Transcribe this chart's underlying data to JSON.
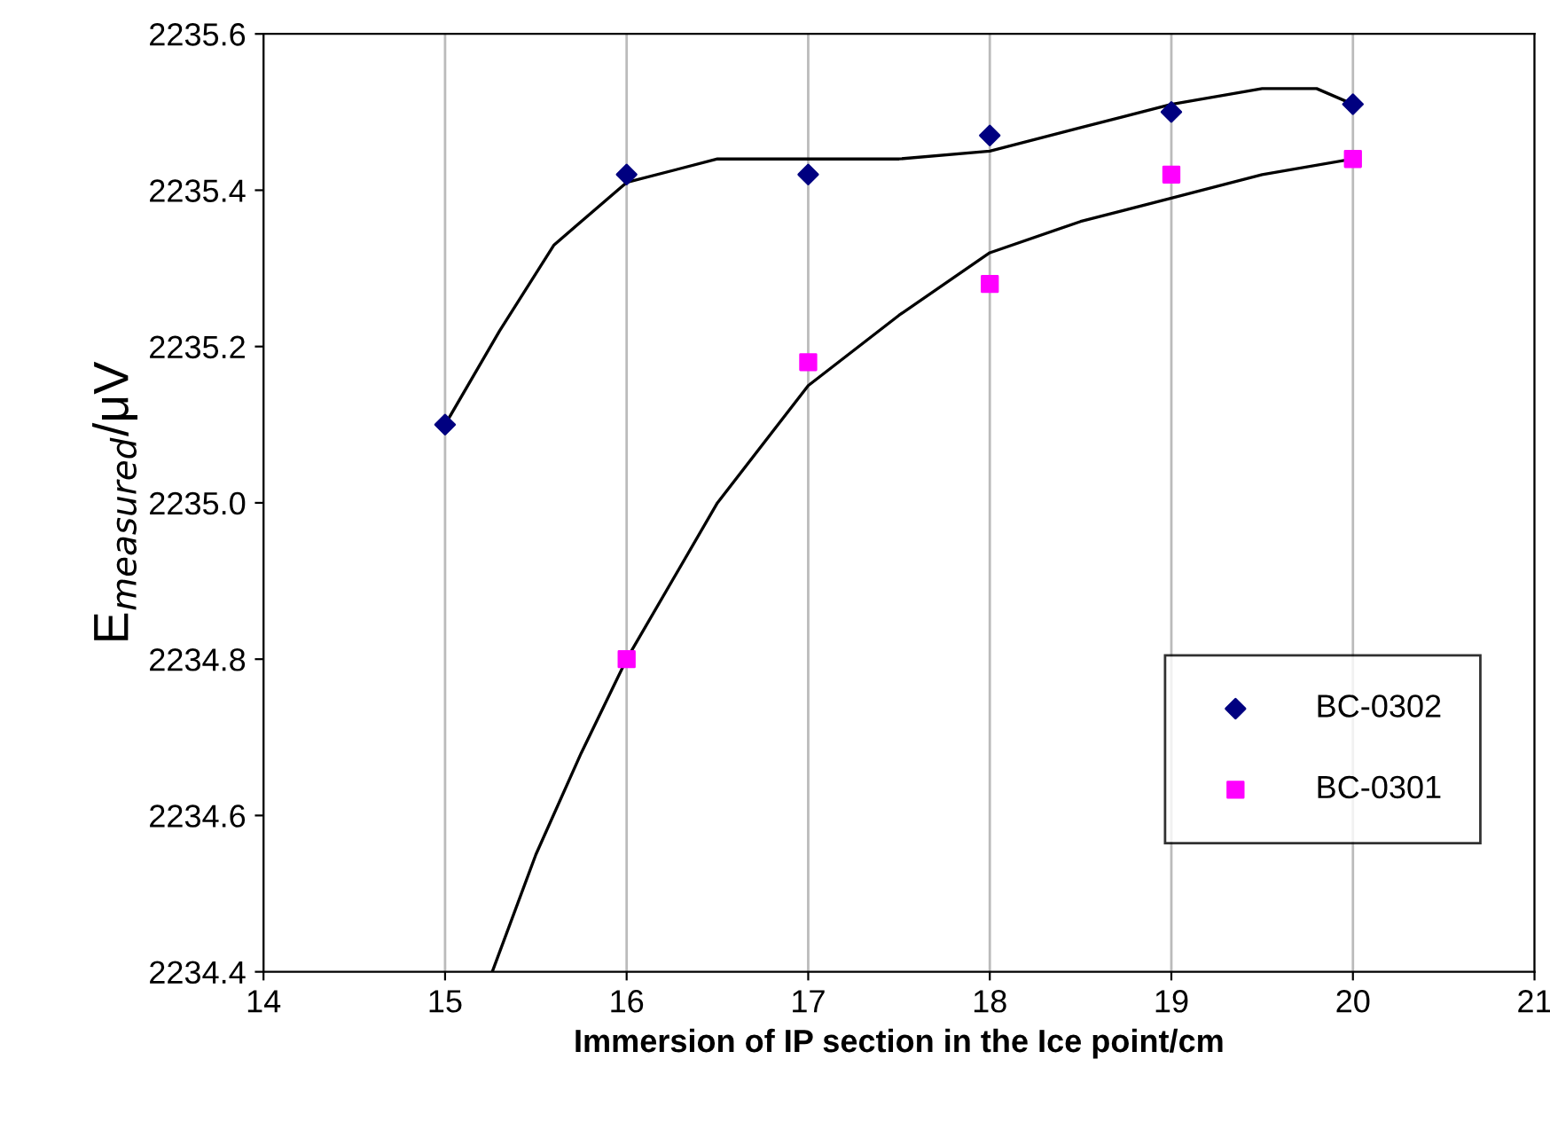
{
  "chart_data": {
    "type": "scatter",
    "xlabel": "Immersion of IP section in the Ice point/cm",
    "ylabel": "E$_{measured}$/μV",
    "xlim": [
      14,
      21
    ],
    "xticks": [
      14,
      15,
      16,
      17,
      18,
      19,
      20,
      21
    ],
    "ylim": [
      2234.4,
      2235.6
    ],
    "yticks": [
      {
        "value": 2234.4,
        "label": "2234.4"
      },
      {
        "value": 2234.6,
        "label": "2234.6"
      },
      {
        "value": 2234.8,
        "label": "2234.8"
      },
      {
        "value": 2235.0,
        "label": "2235.0"
      },
      {
        "value": 2235.2,
        "label": "2235.2"
      },
      {
        "value": 2235.4,
        "label": "2235.4"
      },
      {
        "value": 2235.6,
        "label": "2235.6"
      }
    ],
    "grid": "x",
    "legend": "bottom right",
    "series": [
      {
        "name": "BC-0302",
        "color": "#000080",
        "marker": "diamond",
        "x": [
          15,
          16,
          17,
          18,
          19,
          20
        ],
        "values": [
          2235.1,
          2235.42,
          2235.42,
          2235.47,
          2235.5,
          2235.51
        ]
      },
      {
        "name": "BC-0301",
        "color": "#ff00ff",
        "marker": "square",
        "x": [
          16,
          17,
          18,
          19,
          20
        ],
        "values": [
          2234.8,
          2235.18,
          2235.28,
          2235.42,
          2235.44
        ]
      },
      {
        "type": "line",
        "color": "#000000",
        "marker": "none",
        "x": [
          15,
          15.3,
          15.6,
          16,
          16.5,
          17,
          17.5,
          18,
          18.5,
          19,
          19.5,
          19.8,
          20
        ],
        "values": [
          2235.1,
          2235.22,
          2235.33,
          2235.41,
          2235.44,
          2235.44,
          2235.44,
          2235.45,
          2235.48,
          2235.51,
          2235.53,
          2235.53,
          2235.51
        ]
      },
      {
        "type": "line",
        "color": "#000000",
        "marker": "none",
        "x": [
          15.26,
          15.5,
          15.75,
          16,
          16.5,
          17,
          17.5,
          18,
          18.5,
          19,
          19.5,
          20
        ],
        "values": [
          2234.4,
          2234.55,
          2234.68,
          2234.8,
          2235.0,
          2235.15,
          2235.24,
          2235.32,
          2235.36,
          2235.39,
          2235.42,
          2235.44
        ]
      }
    ]
  }
}
